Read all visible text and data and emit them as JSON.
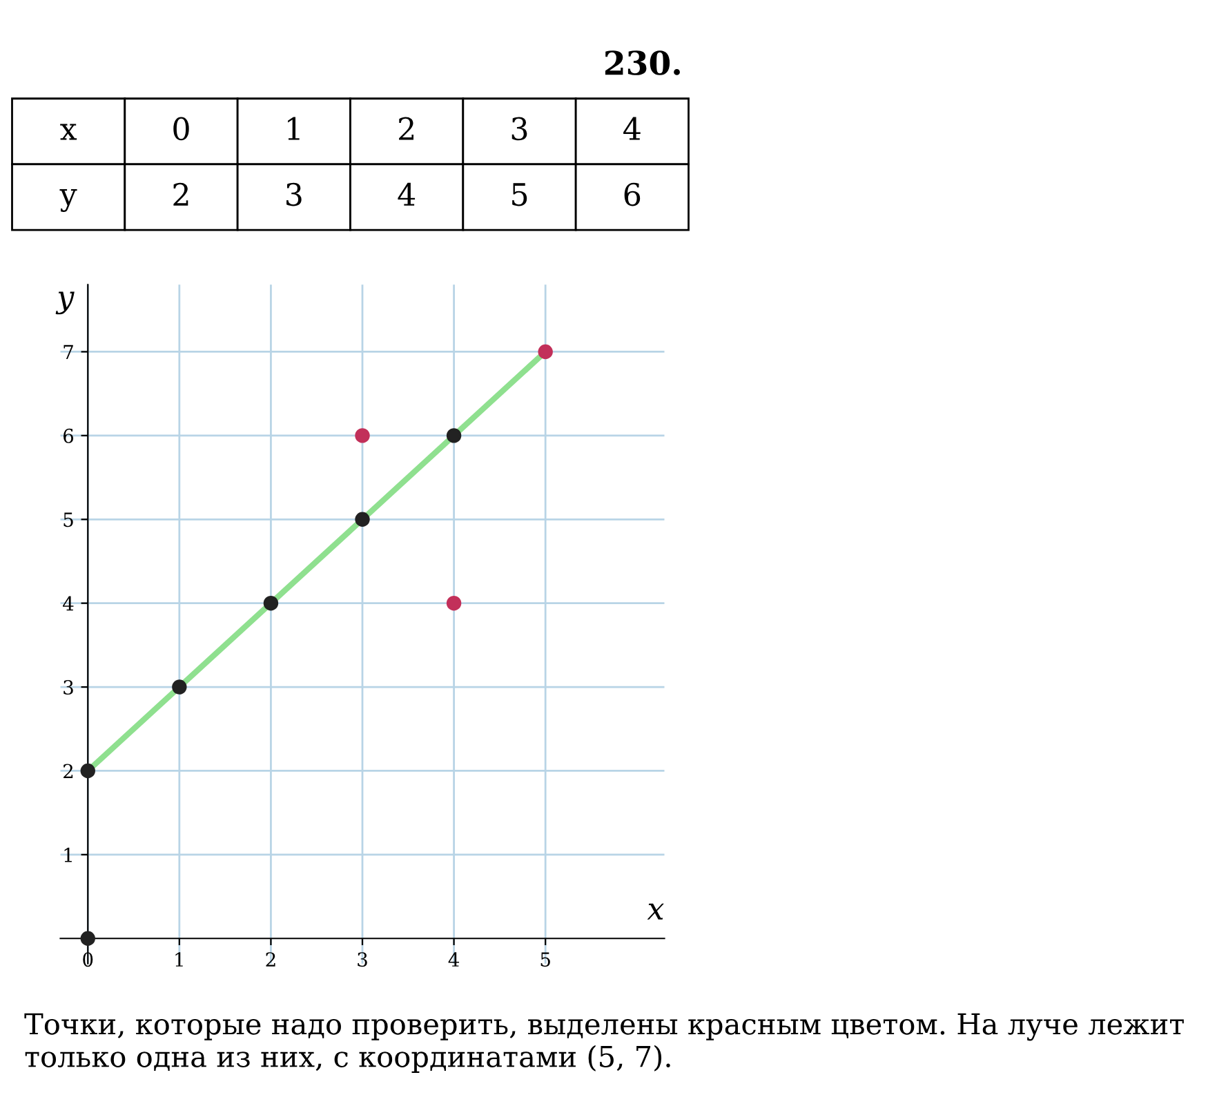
{
  "chart_data": {
    "type": "scatter",
    "title": "230.",
    "xlabel": "x",
    "ylabel": "y",
    "xlim": [
      -0.3,
      6.3
    ],
    "ylim": [
      -0.3,
      7.8
    ],
    "xticks": [
      0,
      1,
      2,
      3,
      4,
      5
    ],
    "yticks": [
      1,
      2,
      3,
      4,
      5,
      6,
      7
    ],
    "grid": true,
    "series": [
      {
        "type": "line",
        "color": "#8fe08f",
        "x": [
          0,
          5
        ],
        "values": [
          2,
          7
        ]
      },
      {
        "color": "#222222",
        "marker": "circle",
        "x": [
          0,
          0,
          1,
          2,
          3,
          4
        ],
        "values": [
          0,
          2,
          3,
          4,
          5,
          6
        ]
      },
      {
        "color": "#c2305a",
        "marker": "circle",
        "x": [
          3,
          4,
          5
        ],
        "values": [
          6,
          4,
          7
        ]
      }
    ],
    "annotations": [
      "x",
      "0",
      "1",
      "2",
      "3",
      "4",
      "y",
      "2",
      "3",
      "4",
      "5",
      "6",
      "Точки, которые надо проверить, выделены красным цветом. На луче лежит только одна из них, с координатами (5, 7)."
    ]
  }
}
